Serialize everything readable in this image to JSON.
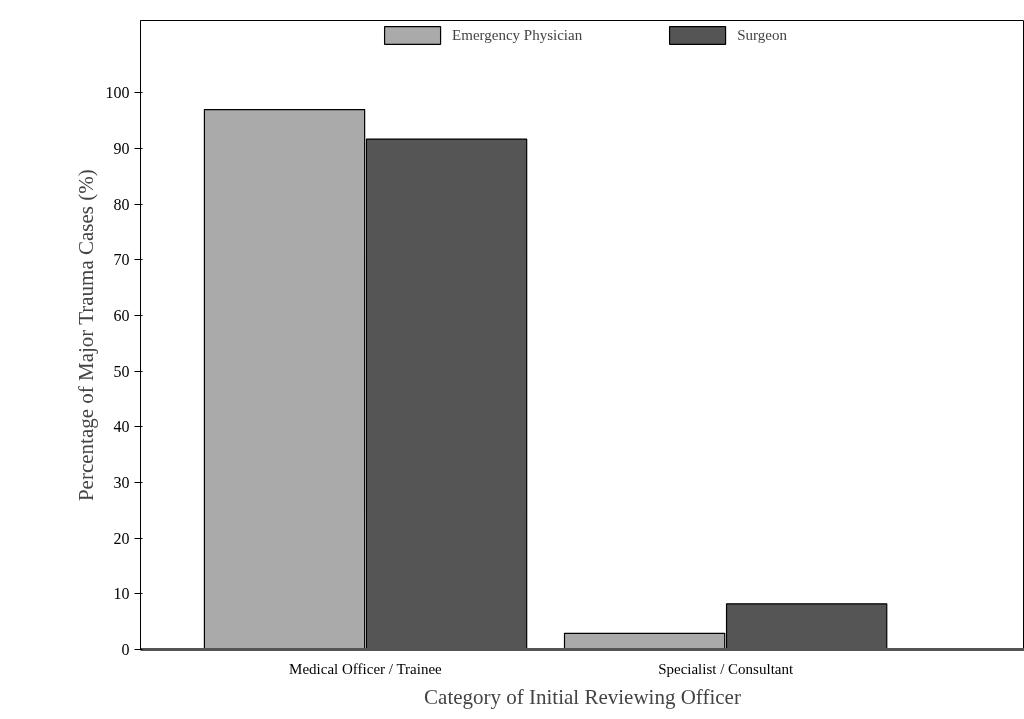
{
  "chart_data": {
    "type": "bar",
    "xlabel": "Category of Initial Reviewing Officer",
    "ylabel": "Percentage of Major Trauma Cases (%)",
    "categories": [
      "Medical Officer / Trainee",
      "Specialist / Consultant"
    ],
    "series": [
      {
        "name": "Emergency Physician",
        "color": "#aaaaaa",
        "values": [
          97,
          2.9
        ]
      },
      {
        "name": "Surgeon",
        "color": "#555555",
        "values": [
          91.7,
          8.2
        ]
      }
    ],
    "ylim": [
      0,
      113
    ],
    "yticks": [
      0,
      10,
      20,
      30,
      40,
      50,
      60,
      70,
      80,
      90,
      100
    ],
    "grid": false,
    "legend": "top"
  }
}
